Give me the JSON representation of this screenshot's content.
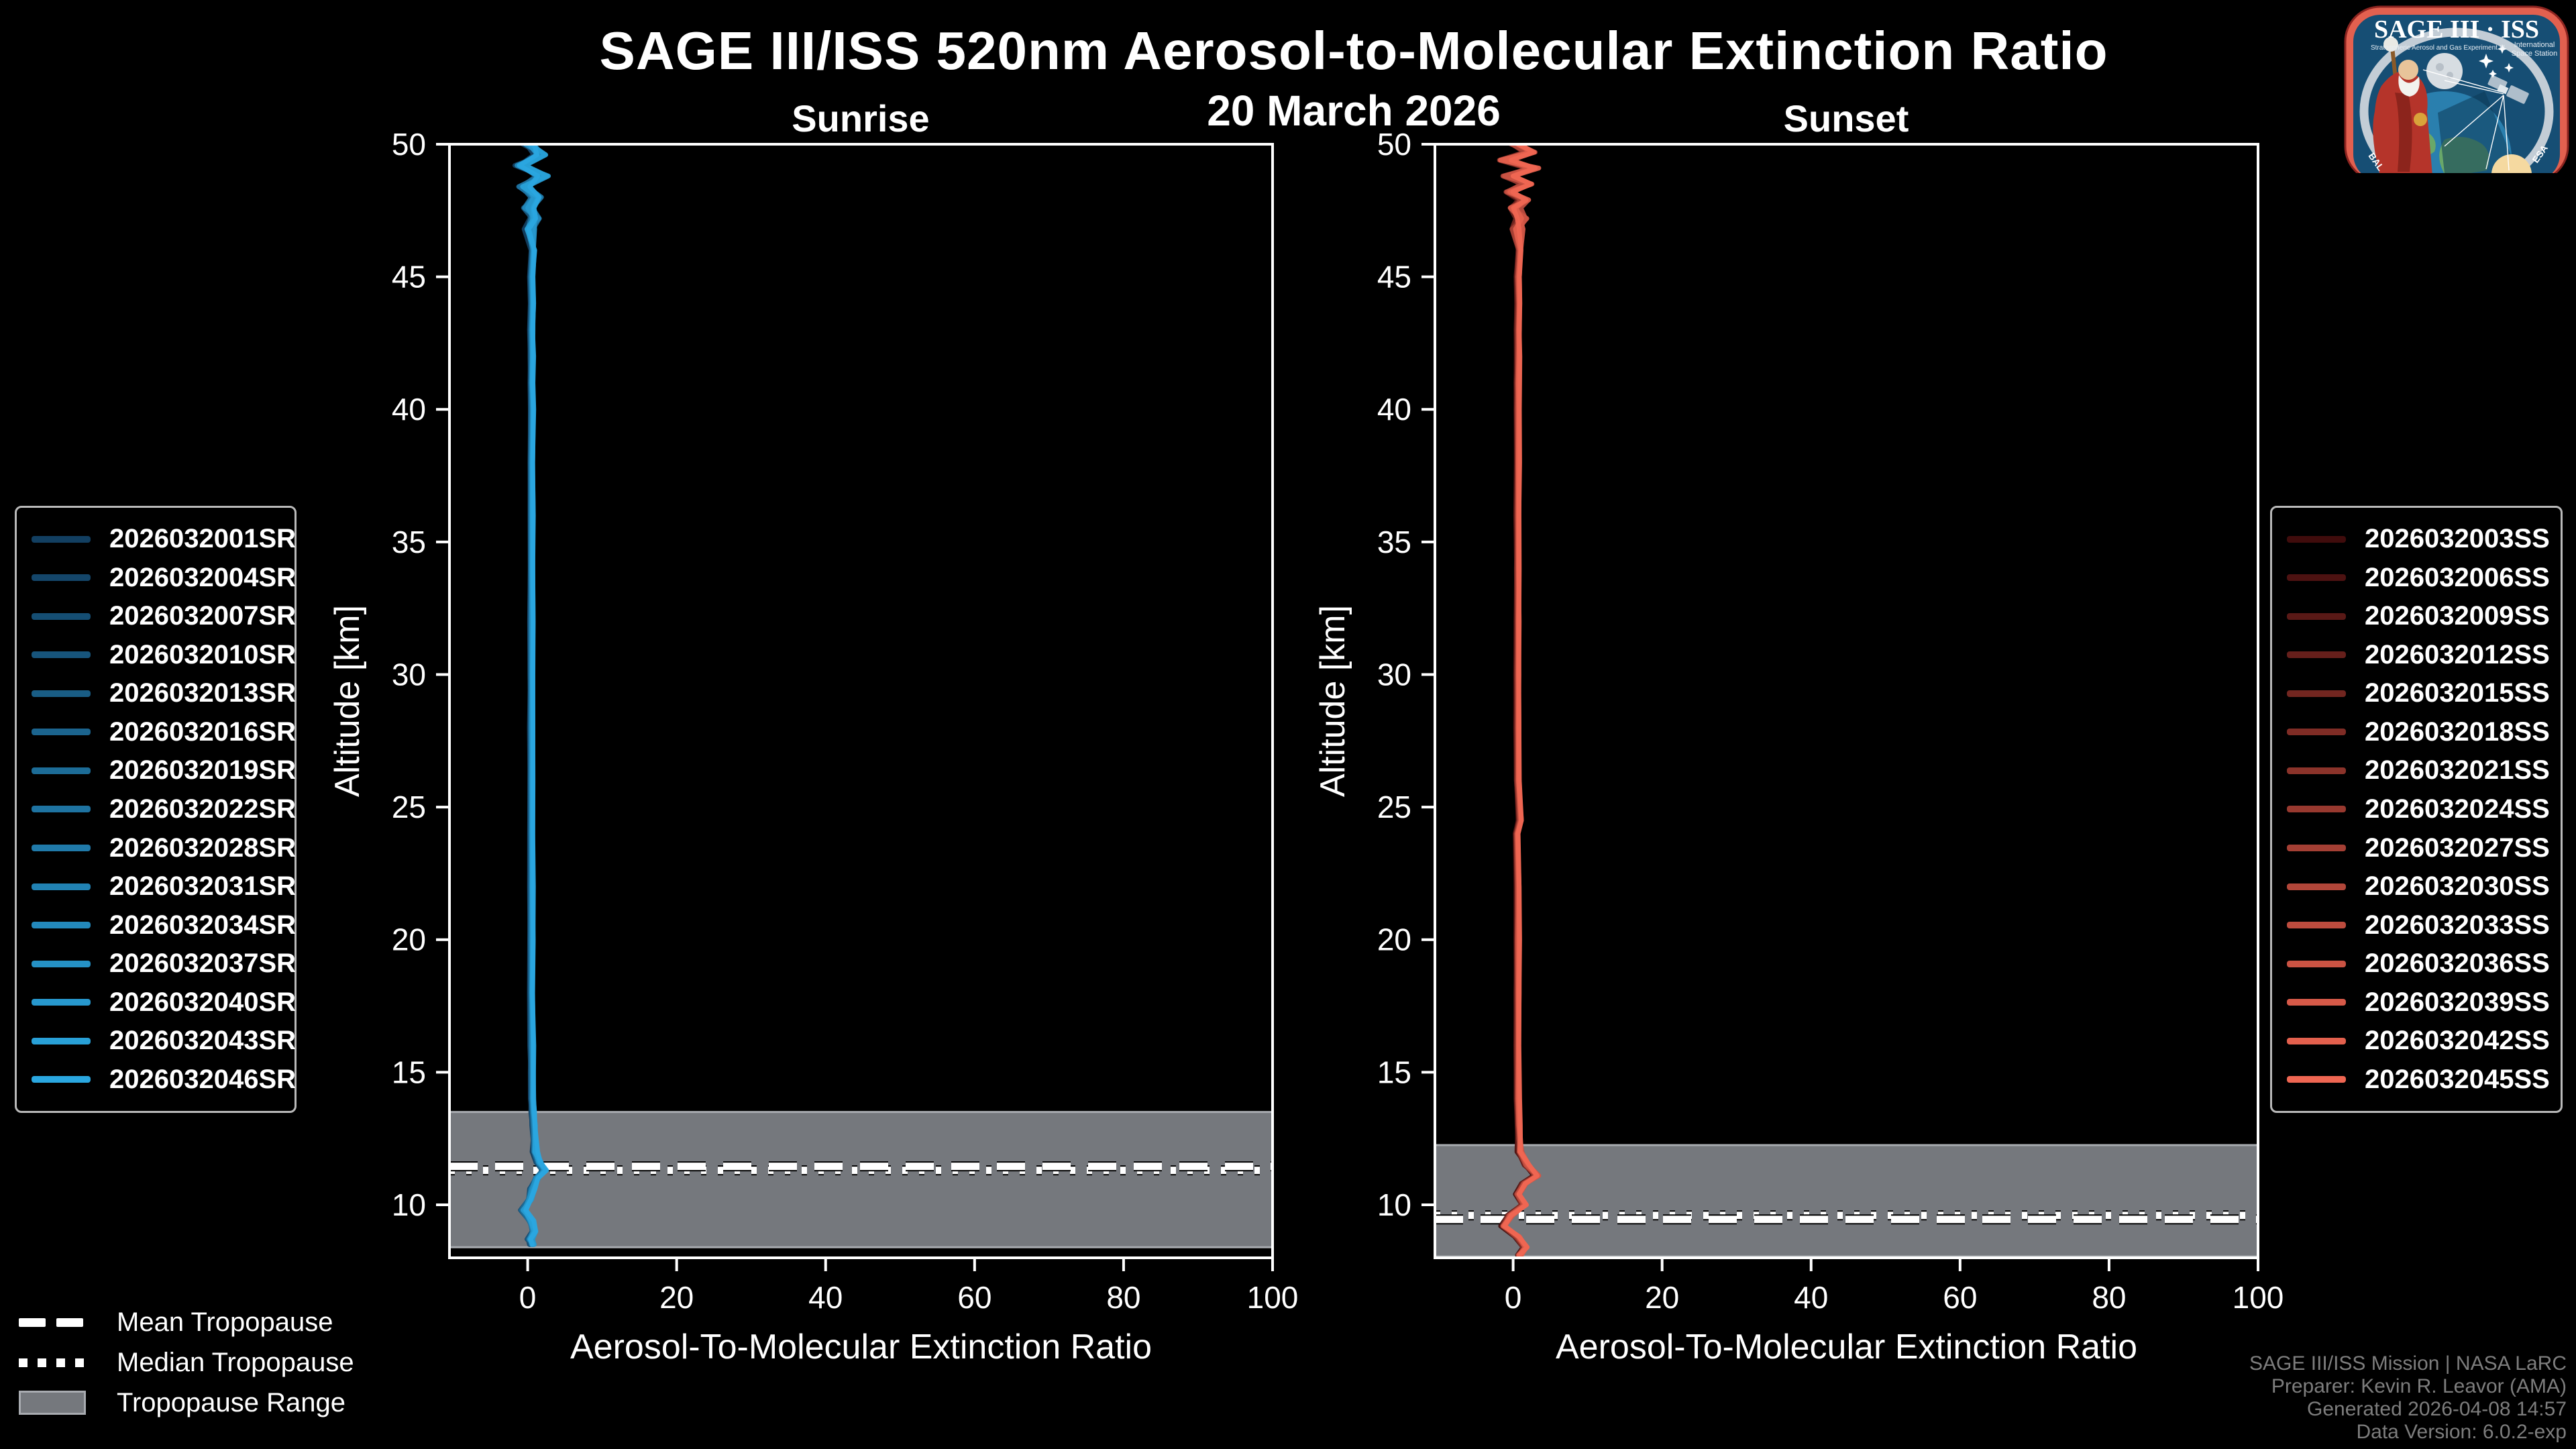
{
  "page_title": "SAGE III/ISS 520nm Aerosol-to-Molecular Extinction Ratio",
  "date_subtitle": "20 March 2026",
  "logo": {
    "title": "SAGE III · ISS",
    "subtitle_left": "Stratospheric Aerosol and Gas Experiment III",
    "subtitle_right_1": "International",
    "subtitle_right_2": "Space Station",
    "ring_text_left": "BAL",
    "ring_text_right": "ESA",
    "border_color": "#e2604f",
    "field_color": "#164e74"
  },
  "credits": {
    "line1": "SAGE III/ISS Mission | NASA LaRC",
    "line2": "Preparer: Kevin R. Leavor (AMA)",
    "line3": "Generated 2026-04-08 14:57",
    "line4": "Data Version: 6.0.2-exp"
  },
  "tropopause_legend": {
    "mean_label": "Mean Tropopause",
    "median_label": "Median Tropopause",
    "range_label": "Tropopause Range",
    "line_color": "#ffffff",
    "range_fill": "#75787d",
    "range_border": "#a8abb0"
  },
  "chart_data": [
    {
      "type": "line",
      "title": "Sunrise",
      "xlabel": "Aerosol-To-Molecular Extinction Ratio",
      "ylabel": "Altitude [km]",
      "xlim": [
        -10.5,
        100
      ],
      "ylim": [
        8,
        50
      ],
      "xticks": [
        0,
        20,
        40,
        60,
        80,
        100
      ],
      "yticks": [
        10,
        15,
        20,
        25,
        30,
        35,
        40,
        45,
        50
      ],
      "grid": false,
      "legend_position": "outside-left",
      "color_start": "#123f61",
      "color_end": "#2aa7e0",
      "events": [
        "2026032001SR",
        "2026032004SR",
        "2026032007SR",
        "2026032010SR",
        "2026032013SR",
        "2026032016SR",
        "2026032019SR",
        "2026032022SR",
        "2026032028SR",
        "2026032031SR",
        "2026032034SR",
        "2026032037SR",
        "2026032040SR",
        "2026032043SR",
        "2026032046SR"
      ],
      "tropopause": {
        "mean_km": 11.45,
        "median_km": 11.3,
        "range_km": [
          8.4,
          13.5
        ]
      },
      "profile_alt_km": [
        50,
        49.6,
        49.2,
        48.8,
        48.4,
        48,
        47.6,
        47.2,
        46.8,
        46,
        45,
        44,
        43,
        42,
        41,
        40,
        38,
        36,
        34,
        32,
        30,
        28,
        26,
        24,
        22,
        20,
        18,
        16,
        15,
        14,
        13.5,
        13,
        12.5,
        12,
        11.6,
        11.3,
        11,
        10.6,
        10.2,
        9.8,
        9.4,
        9,
        8.7,
        8.5
      ],
      "profile_ratio": [
        0.3,
        1.6,
        -0.9,
        1.9,
        -0.5,
        1.2,
        0,
        0.9,
        0.3,
        0.7,
        0.5,
        0.6,
        0.5,
        0.55,
        0.5,
        0.55,
        0.5,
        0.52,
        0.5,
        0.5,
        0.5,
        0.5,
        0.5,
        0.5,
        0.5,
        0.5,
        0.5,
        0.55,
        0.6,
        0.6,
        0.7,
        0.8,
        0.9,
        1.0,
        1.5,
        2.2,
        1.2,
        0.6,
        0.2,
        -0.6,
        0.4,
        0.8,
        0.3,
        0.6
      ]
    },
    {
      "type": "line",
      "title": "Sunset",
      "xlabel": "Aerosol-To-Molecular Extinction Ratio",
      "ylabel": "Altitude [km]",
      "xlim": [
        -10.5,
        100
      ],
      "ylim": [
        8,
        50
      ],
      "xticks": [
        0,
        20,
        40,
        60,
        80,
        100
      ],
      "yticks": [
        10,
        15,
        20,
        25,
        30,
        35,
        40,
        45,
        50
      ],
      "grid": false,
      "legend_position": "outside-right",
      "color_start": "#400c0c",
      "color_end": "#ef6652",
      "events": [
        "2026032003SS",
        "2026032006SS",
        "2026032009SS",
        "2026032012SS",
        "2026032015SS",
        "2026032018SS",
        "2026032021SS",
        "2026032024SS",
        "2026032027SS",
        "2026032030SS",
        "2026032033SS",
        "2026032036SS",
        "2026032039SS",
        "2026032042SS",
        "2026032045SS"
      ],
      "tropopause": {
        "mean_km": 9.45,
        "median_km": 9.6,
        "range_km": [
          8.05,
          12.25
        ]
      },
      "profile_alt_km": [
        50,
        49.7,
        49.4,
        49.1,
        48.8,
        48.5,
        48.2,
        47.9,
        47.6,
        47.2,
        46.8,
        46,
        45,
        44,
        43,
        42,
        41,
        40,
        38,
        36,
        34,
        32,
        30,
        28,
        26,
        24.5,
        24,
        22,
        20,
        18,
        16,
        14,
        13,
        12.5,
        12,
        11.5,
        11.1,
        10.8,
        10.4,
        10,
        9.6,
        9.2,
        8.8,
        8.4,
        8.1
      ],
      "profile_ratio": [
        0.5,
        2.3,
        -1.2,
        2.6,
        -0.8,
        1.8,
        -0.3,
        1.4,
        0.2,
        1.0,
        0.5,
        0.8,
        0.6,
        0.7,
        0.6,
        0.65,
        0.6,
        0.6,
        0.6,
        0.6,
        0.6,
        0.6,
        0.6,
        0.6,
        0.6,
        0.9,
        0.5,
        0.6,
        0.6,
        0.6,
        0.6,
        0.6,
        0.7,
        0.8,
        0.9,
        1.8,
        3.2,
        1.5,
        0.6,
        1.4,
        -0.4,
        -1.3,
        0.5,
        1.6,
        0.8
      ]
    }
  ]
}
